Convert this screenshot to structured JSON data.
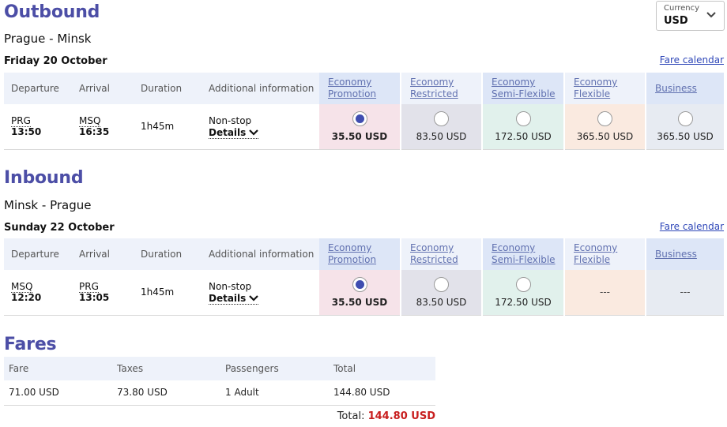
{
  "currency": {
    "label": "Currency",
    "value": "USD"
  },
  "outbound": {
    "title": "Outbound",
    "route": "Prague - Minsk",
    "date": "Friday 20 October",
    "fare_calendar": "Fare calendar",
    "headers": [
      "Departure",
      "Arrival",
      "Duration",
      "Additional information"
    ],
    "fare_headers": [
      "Economy Promotion",
      "Economy Restricted",
      "Economy Semi-Flexible",
      "Economy Flexible",
      "Business"
    ],
    "flight": {
      "dep_code": "PRG",
      "dep_time": "13:50",
      "arr_code": "MSQ",
      "arr_time": "16:35",
      "duration": "1h45m",
      "info": "Non-stop",
      "details": "Details",
      "fares": [
        "35.50 USD",
        "83.50 USD",
        "172.50 USD",
        "365.50 USD",
        "365.50 USD"
      ]
    }
  },
  "inbound": {
    "title": "Inbound",
    "route": "Minsk - Prague",
    "date": "Sunday 22 October",
    "fare_calendar": "Fare calendar",
    "headers": [
      "Departure",
      "Arrival",
      "Duration",
      "Additional information"
    ],
    "fare_headers": [
      "Economy Promotion",
      "Economy Restricted",
      "Economy Semi-Flexible",
      "Economy Flexible",
      "Business"
    ],
    "flight": {
      "dep_code": "MSQ",
      "dep_time": "12:20",
      "arr_code": "PRG",
      "arr_time": "13:05",
      "duration": "1h45m",
      "info": "Non-stop",
      "details": "Details",
      "fares": [
        "35.50 USD",
        "83.50 USD",
        "172.50 USD",
        "---",
        "---"
      ]
    }
  },
  "fares": {
    "title": "Fares",
    "headers": [
      "Fare",
      "Taxes",
      "Passengers",
      "Total"
    ],
    "row": [
      "71.00 USD",
      "73.80 USD",
      "1 Adult",
      "144.80 USD"
    ],
    "total_label": "Total:",
    "total_value": "144.80 USD"
  }
}
